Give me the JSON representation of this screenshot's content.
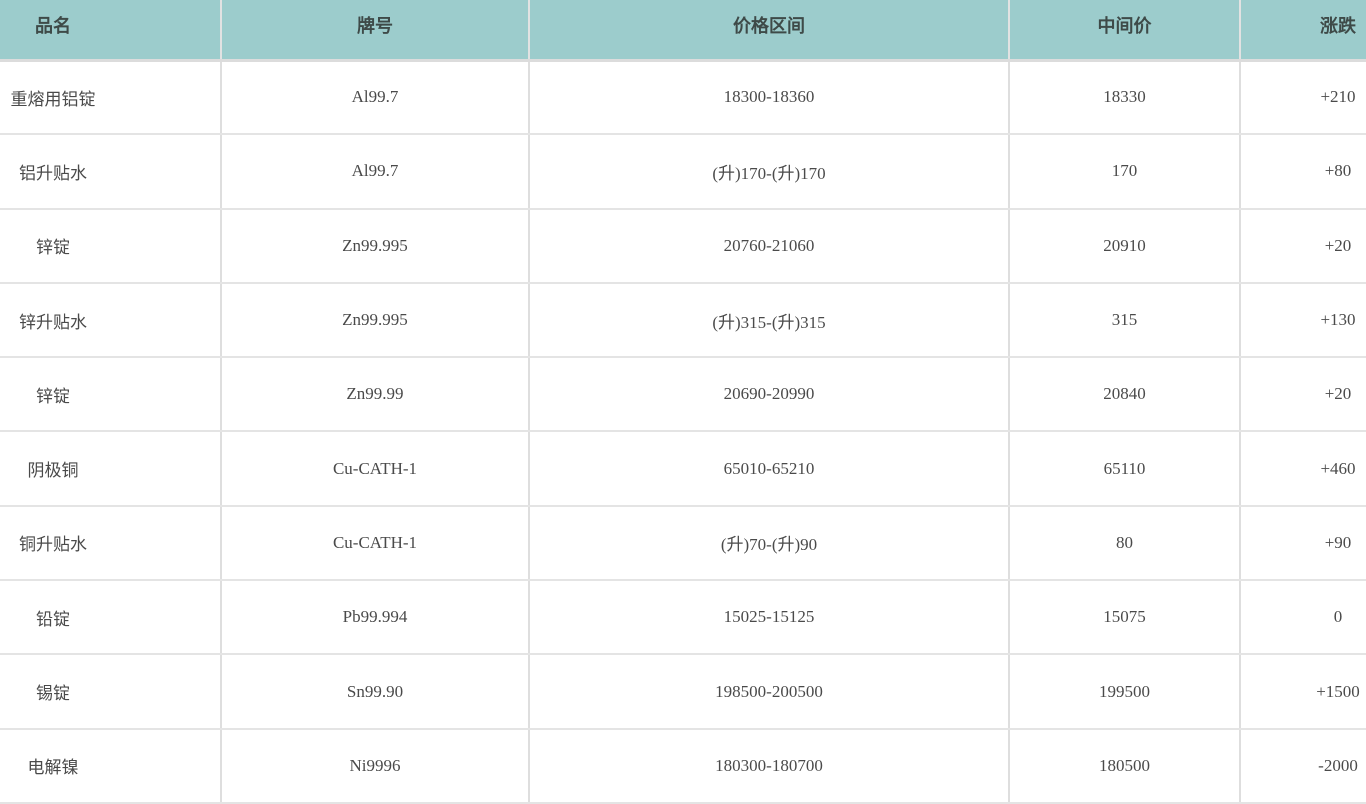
{
  "table": {
    "headers": [
      "品名",
      "牌号",
      "价格区间",
      "中间价",
      "涨跌"
    ],
    "rows": [
      [
        "重熔用铝锭",
        "Al99.7",
        "18300-18360",
        "18330",
        "+210"
      ],
      [
        "铝升贴水",
        "Al99.7",
        "(升)170-(升)170",
        "170",
        "+80"
      ],
      [
        "锌锭",
        "Zn99.995",
        "20760-21060",
        "20910",
        "+20"
      ],
      [
        "锌升贴水",
        "Zn99.995",
        "(升)315-(升)315",
        "315",
        "+130"
      ],
      [
        "锌锭",
        "Zn99.99",
        "20690-20990",
        "20840",
        "+20"
      ],
      [
        "阴极铜",
        "Cu-CATH-1",
        "65010-65210",
        "65110",
        "+460"
      ],
      [
        "铜升贴水",
        "Cu-CATH-1",
        "(升)70-(升)90",
        "80",
        "+90"
      ],
      [
        "铅锭",
        "Pb99.994",
        "15025-15125",
        "15075",
        "0"
      ],
      [
        "锡锭",
        "Sn99.90",
        "198500-200500",
        "199500",
        "+1500"
      ],
      [
        "电解镍",
        "Ni9996",
        "180300-180700",
        "180500",
        "-2000"
      ]
    ]
  },
  "colors": {
    "header_bg": "#9ccccc",
    "text": "#4a4a4a"
  }
}
